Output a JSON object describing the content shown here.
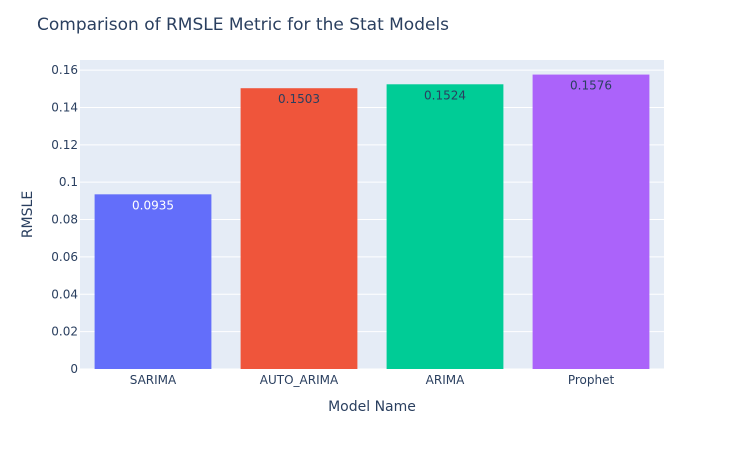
{
  "chart_data": {
    "type": "bar",
    "title": "Comparison of RMSLE Metric for the Stat Models",
    "xlabel": "Model Name",
    "ylabel": "RMSLE",
    "categories": [
      "SARIMA",
      "AUTO_ARIMA",
      "ARIMA",
      "Prophet"
    ],
    "values": [
      0.0935,
      0.1503,
      0.1524,
      0.1576
    ],
    "data_labels": [
      "0.0935",
      "0.1503",
      "0.1524",
      "0.1576"
    ],
    "colors": [
      "#636efa",
      "#ef553b",
      "#00cc96",
      "#ab63fa"
    ],
    "data_label_colors": [
      "#ffffff",
      "#2a3f5f",
      "#2a3f5f",
      "#2a3f5f"
    ],
    "ylim": [
      0,
      0.1654
    ],
    "yticks": [
      0,
      0.02,
      0.04,
      0.06,
      0.08,
      0.1,
      0.12,
      0.14,
      0.16
    ],
    "ytick_labels": [
      "0",
      "0.02",
      "0.04",
      "0.06",
      "0.08",
      "0.1",
      "0.12",
      "0.14",
      "0.16"
    ],
    "grid": true,
    "plot_bg": "#e5ecf6"
  }
}
